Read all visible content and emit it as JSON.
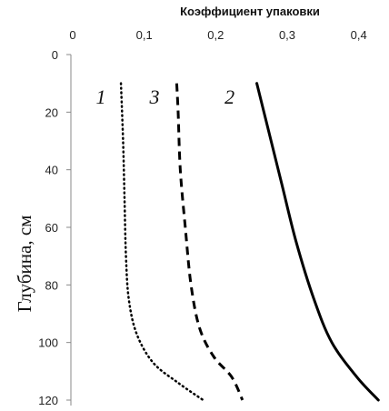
{
  "chart_data": {
    "type": "line",
    "xlabel": "Коэффициент упаковки",
    "ylabel": "Глубина, см",
    "x_axis_position": "top",
    "y_inverted": true,
    "xlim": [
      0,
      0.45
    ],
    "ylim": [
      0,
      120
    ],
    "x_ticks": [
      "0",
      "0,1",
      "0,2",
      "0,3",
      "0,4"
    ],
    "x_tick_values": [
      0,
      0.1,
      0.2,
      0.3,
      0.4
    ],
    "y_ticks": [
      "0",
      "20",
      "40",
      "60",
      "80",
      "100",
      "120"
    ],
    "y_tick_values": [
      0,
      20,
      40,
      60,
      80,
      100,
      120
    ],
    "grid": false,
    "series": [
      {
        "label": "1",
        "style": "dotted",
        "points": [
          [
            0.07,
            10
          ],
          [
            0.073,
            30
          ],
          [
            0.075,
            50
          ],
          [
            0.077,
            70
          ],
          [
            0.081,
            85
          ],
          [
            0.092,
            97
          ],
          [
            0.115,
            107
          ],
          [
            0.15,
            114
          ],
          [
            0.185,
            120
          ]
        ],
        "label_pos": [
          0.035,
          17
        ]
      },
      {
        "label": "2",
        "style": "solid",
        "points": [
          [
            0.26,
            10
          ],
          [
            0.275,
            25
          ],
          [
            0.295,
            45
          ],
          [
            0.315,
            65
          ],
          [
            0.34,
            85
          ],
          [
            0.365,
            100
          ],
          [
            0.4,
            112
          ],
          [
            0.43,
            120
          ]
        ],
        "label_pos": [
          0.215,
          17
        ]
      },
      {
        "label": "3",
        "style": "dashed",
        "points": [
          [
            0.148,
            10
          ],
          [
            0.15,
            20
          ],
          [
            0.153,
            40
          ],
          [
            0.16,
            60
          ],
          [
            0.168,
            80
          ],
          [
            0.18,
            95
          ],
          [
            0.2,
            105
          ],
          [
            0.225,
            112
          ],
          [
            0.24,
            120
          ]
        ],
        "label_pos": [
          0.11,
          17
        ]
      }
    ]
  }
}
